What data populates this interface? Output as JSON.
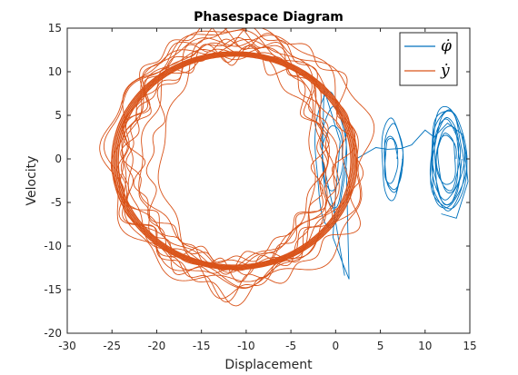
{
  "chart_data": {
    "type": "line",
    "title": "Phasespace Diagram",
    "xlabel": "Displacement",
    "ylabel": "Velocity",
    "xlim": [
      -30,
      15
    ],
    "ylim": [
      -20,
      15
    ],
    "xticks": [
      "-30",
      "-25",
      "-20",
      "-15",
      "-10",
      "-5",
      "0",
      "5",
      "10",
      "15"
    ],
    "yticks": [
      "-20",
      "-15",
      "-10",
      "-5",
      "0",
      "5",
      "10",
      "15"
    ],
    "grid": false,
    "legend_position": "top-right",
    "series": [
      {
        "name": "φ̇",
        "legend_label": "φ̇",
        "color": "#0072BD",
        "description_points": [
          [
            -1.5,
            0
          ],
          [
            -1.8,
            4
          ],
          [
            -1.2,
            6
          ],
          [
            -0.5,
            3
          ],
          [
            0.5,
            0
          ],
          [
            0.2,
            -6
          ],
          [
            1.2,
            -13.5
          ],
          [
            1.5,
            -8
          ],
          [
            1.0,
            -2
          ],
          [
            0.2,
            2
          ],
          [
            0.8,
            5
          ],
          [
            6.3,
            0
          ],
          [
            5.6,
            3.8
          ],
          [
            6.9,
            4.2
          ],
          [
            7.5,
            0
          ],
          [
            6.8,
            -4
          ],
          [
            5.6,
            -3.5
          ],
          [
            12.5,
            0
          ],
          [
            11.0,
            5
          ],
          [
            14.0,
            5.5
          ],
          [
            14.5,
            0
          ],
          [
            13.8,
            -5.5
          ],
          [
            11.2,
            -6.5
          ]
        ]
      },
      {
        "name": "ẏ",
        "legend_label": "ẏ",
        "color": "#D95319",
        "description_points": [
          [
            -11,
            12
          ],
          [
            -4,
            9
          ],
          [
            0,
            3
          ],
          [
            1,
            -2
          ],
          [
            -3,
            -9
          ],
          [
            -11,
            -12
          ],
          [
            -18,
            -9
          ],
          [
            -21,
            -2
          ],
          [
            -20,
            5
          ],
          [
            -16,
            10
          ],
          [
            -11,
            12
          ],
          [
            -12,
            15
          ],
          [
            -3,
            11
          ],
          [
            3,
            4
          ],
          [
            4,
            -3
          ],
          [
            0,
            -10
          ],
          [
            -10,
            -15
          ],
          [
            -21,
            -12
          ],
          [
            -26,
            -3
          ],
          [
            -24,
            7
          ],
          [
            -18,
            13
          ],
          [
            -12,
            15
          ]
        ]
      }
    ]
  }
}
